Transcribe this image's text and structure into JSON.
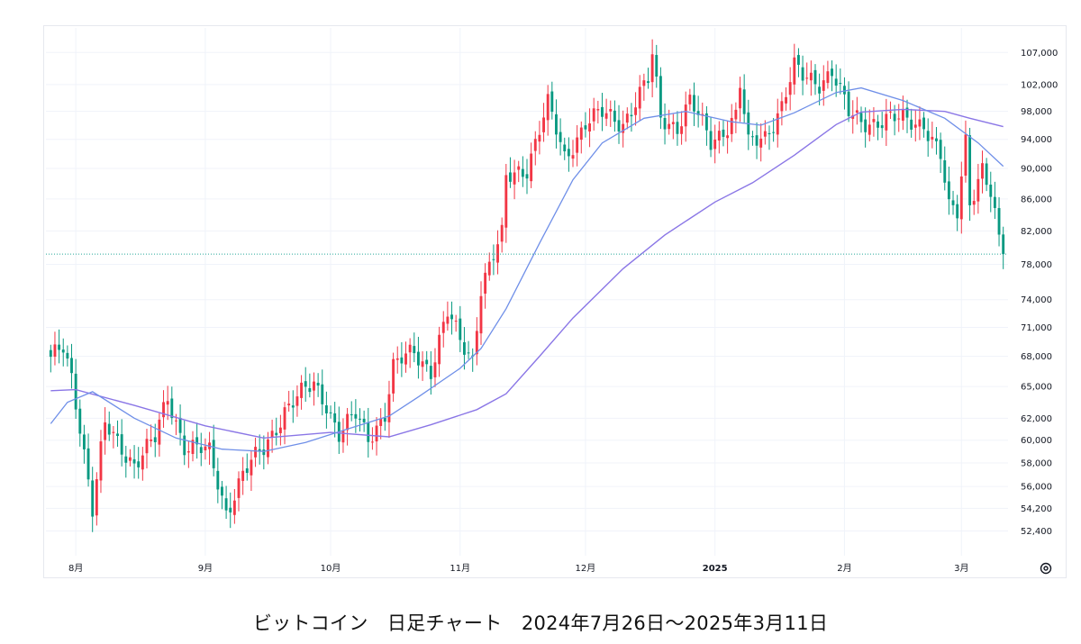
{
  "caption": "ビットコイン　日足チャート　2024年7月26日～2025年3月11日",
  "colors": {
    "up": "#f23645",
    "down": "#089981",
    "ma_short": "#6f8fe8",
    "ma_long": "#8a76e6",
    "current_price_line": "#26a69a",
    "grid": "#f0f3fa"
  },
  "settings_icon": "gear-icon",
  "chart_data": {
    "type": "candlestick",
    "title": "",
    "y_scale": "log",
    "ylim": [
      50500,
      111000
    ],
    "y_ticks": [
      {
        "v": 107000,
        "label": "107,000"
      },
      {
        "v": 102000,
        "label": "102,000"
      },
      {
        "v": 98000,
        "label": "98,000"
      },
      {
        "v": 94000,
        "label": "94,000"
      },
      {
        "v": 90000,
        "label": "90,000"
      },
      {
        "v": 86000,
        "label": "86,000"
      },
      {
        "v": 82000,
        "label": "82,000"
      },
      {
        "v": 78000,
        "label": "78,000"
      },
      {
        "v": 74000,
        "label": "74,000"
      },
      {
        "v": 71000,
        "label": "71,000"
      },
      {
        "v": 68000,
        "label": "68,000"
      },
      {
        "v": 65000,
        "label": "65,000"
      },
      {
        "v": 62000,
        "label": "62,000"
      },
      {
        "v": 60000,
        "label": "60,000"
      },
      {
        "v": 58000,
        "label": "58,000"
      },
      {
        "v": 56000,
        "label": "56,000"
      },
      {
        "v": 54200,
        "label": "54,200"
      },
      {
        "v": 52400,
        "label": "52,400"
      }
    ],
    "x_ticks": [
      {
        "date": "2024-08-01",
        "label": "8月",
        "bold": false
      },
      {
        "date": "2024-09-01",
        "label": "9月",
        "bold": false
      },
      {
        "date": "2024-10-01",
        "label": "10月",
        "bold": false
      },
      {
        "date": "2024-11-01",
        "label": "11月",
        "bold": false
      },
      {
        "date": "2024-12-01",
        "label": "12月",
        "bold": false
      },
      {
        "date": "2025-01-01",
        "label": "2025",
        "bold": true
      },
      {
        "date": "2025-02-01",
        "label": "2月",
        "bold": false
      },
      {
        "date": "2025-03-01",
        "label": "3月",
        "bold": false
      }
    ],
    "start_date": "2024-07-26",
    "end_date": "2025-03-11",
    "current_price": 79200,
    "key_points": [
      [
        "2024-07-26",
        67500
      ],
      [
        "2024-07-29",
        68800
      ],
      [
        "2024-07-31",
        66000
      ],
      [
        "2024-08-02",
        61500
      ],
      [
        "2024-08-05",
        54100
      ],
      [
        "2024-08-08",
        61200
      ],
      [
        "2024-08-15",
        58000
      ],
      [
        "2024-08-20",
        60000
      ],
      [
        "2024-08-23",
        64000
      ],
      [
        "2024-08-27",
        59600
      ],
      [
        "2024-09-02",
        58800
      ],
      [
        "2024-09-06",
        54000
      ],
      [
        "2024-09-10",
        57000
      ],
      [
        "2024-09-15",
        59200
      ],
      [
        "2024-09-20",
        62800
      ],
      [
        "2024-09-27",
        65200
      ],
      [
        "2024-09-30",
        63500
      ],
      [
        "2024-10-03",
        60500
      ],
      [
        "2024-10-07",
        62200
      ],
      [
        "2024-10-10",
        60300
      ],
      [
        "2024-10-14",
        62500
      ],
      [
        "2024-10-16",
        66800
      ],
      [
        "2024-10-21",
        68500
      ],
      [
        "2024-10-25",
        66700
      ],
      [
        "2024-10-29",
        72400
      ],
      [
        "2024-11-01",
        69500
      ],
      [
        "2024-11-04",
        67800
      ],
      [
        "2024-11-06",
        75500
      ],
      [
        "2024-11-11",
        81200
      ],
      [
        "2024-11-12",
        88500
      ],
      [
        "2024-11-15",
        89800
      ],
      [
        "2024-11-17",
        90200
      ],
      [
        "2024-11-22",
        98800
      ],
      [
        "2024-11-26",
        91500
      ],
      [
        "2024-12-01",
        96400
      ],
      [
        "2024-12-05",
        97500
      ],
      [
        "2024-12-10",
        96500
      ],
      [
        "2024-12-16",
        102500
      ],
      [
        "2024-12-17",
        106200
      ],
      [
        "2024-12-19",
        97000
      ],
      [
        "2024-12-23",
        96000
      ],
      [
        "2024-12-26",
        99500
      ],
      [
        "2024-12-31",
        93500
      ],
      [
        "2025-01-06",
        97500
      ],
      [
        "2025-01-07",
        102000
      ],
      [
        "2025-01-09",
        93000
      ],
      [
        "2025-01-13",
        94500
      ],
      [
        "2025-01-17",
        99000
      ],
      [
        "2025-01-20",
        104500
      ],
      [
        "2025-01-22",
        103000
      ],
      [
        "2025-01-26",
        102500
      ],
      [
        "2025-01-29",
        104300
      ],
      [
        "2025-02-02",
        97500
      ],
      [
        "2025-02-05",
        96500
      ],
      [
        "2025-02-11",
        96800
      ],
      [
        "2025-02-20",
        96500
      ],
      [
        "2025-02-24",
        91500
      ],
      [
        "2025-02-26",
        84500
      ],
      [
        "2025-02-28",
        84300
      ],
      [
        "2025-03-02",
        94200
      ],
      [
        "2025-03-03",
        86000
      ],
      [
        "2025-03-06",
        90000
      ],
      [
        "2025-03-08",
        86400
      ],
      [
        "2025-03-10",
        80500
      ],
      [
        "2025-03-11",
        79200
      ]
    ],
    "ma_short_points": [
      [
        "2024-07-26",
        61500
      ],
      [
        "2024-07-30",
        63500
      ],
      [
        "2024-08-05",
        64500
      ],
      [
        "2024-08-15",
        62000
      ],
      [
        "2024-08-25",
        60200
      ],
      [
        "2024-09-05",
        59200
      ],
      [
        "2024-09-15",
        59000
      ],
      [
        "2024-09-25",
        59800
      ],
      [
        "2024-10-05",
        61000
      ],
      [
        "2024-10-15",
        62200
      ],
      [
        "2024-10-22",
        64000
      ],
      [
        "2024-11-01",
        66800
      ],
      [
        "2024-11-06",
        68800
      ],
      [
        "2024-11-12",
        73000
      ],
      [
        "2024-11-20",
        80500
      ],
      [
        "2024-11-28",
        88500
      ],
      [
        "2024-12-05",
        93500
      ],
      [
        "2024-12-15",
        97000
      ],
      [
        "2024-12-25",
        98000
      ],
      [
        "2025-01-05",
        96500
      ],
      [
        "2025-01-12",
        96000
      ],
      [
        "2025-01-20",
        97800
      ],
      [
        "2025-01-30",
        100800
      ],
      [
        "2025-02-05",
        101500
      ],
      [
        "2025-02-15",
        99600
      ],
      [
        "2025-02-25",
        97000
      ],
      [
        "2025-03-05",
        93500
      ],
      [
        "2025-03-11",
        90300
      ]
    ],
    "ma_long_points": [
      [
        "2024-07-26",
        64600
      ],
      [
        "2024-08-01",
        64700
      ],
      [
        "2024-08-15",
        63200
      ],
      [
        "2024-09-01",
        61300
      ],
      [
        "2024-09-15",
        60200
      ],
      [
        "2024-10-01",
        60700
      ],
      [
        "2024-10-15",
        60300
      ],
      [
        "2024-10-25",
        61400
      ],
      [
        "2024-11-05",
        62800
      ],
      [
        "2024-11-12",
        64300
      ],
      [
        "2024-11-20",
        68000
      ],
      [
        "2024-11-28",
        72000
      ],
      [
        "2024-12-10",
        77500
      ],
      [
        "2024-12-20",
        81500
      ],
      [
        "2025-01-01",
        85600
      ],
      [
        "2025-01-10",
        88100
      ],
      [
        "2025-01-20",
        91800
      ],
      [
        "2025-01-30",
        96100
      ],
      [
        "2025-02-05",
        97900
      ],
      [
        "2025-02-15",
        98300
      ],
      [
        "2025-02-25",
        98000
      ],
      [
        "2025-03-03",
        97000
      ],
      [
        "2025-03-11",
        95800
      ]
    ]
  }
}
